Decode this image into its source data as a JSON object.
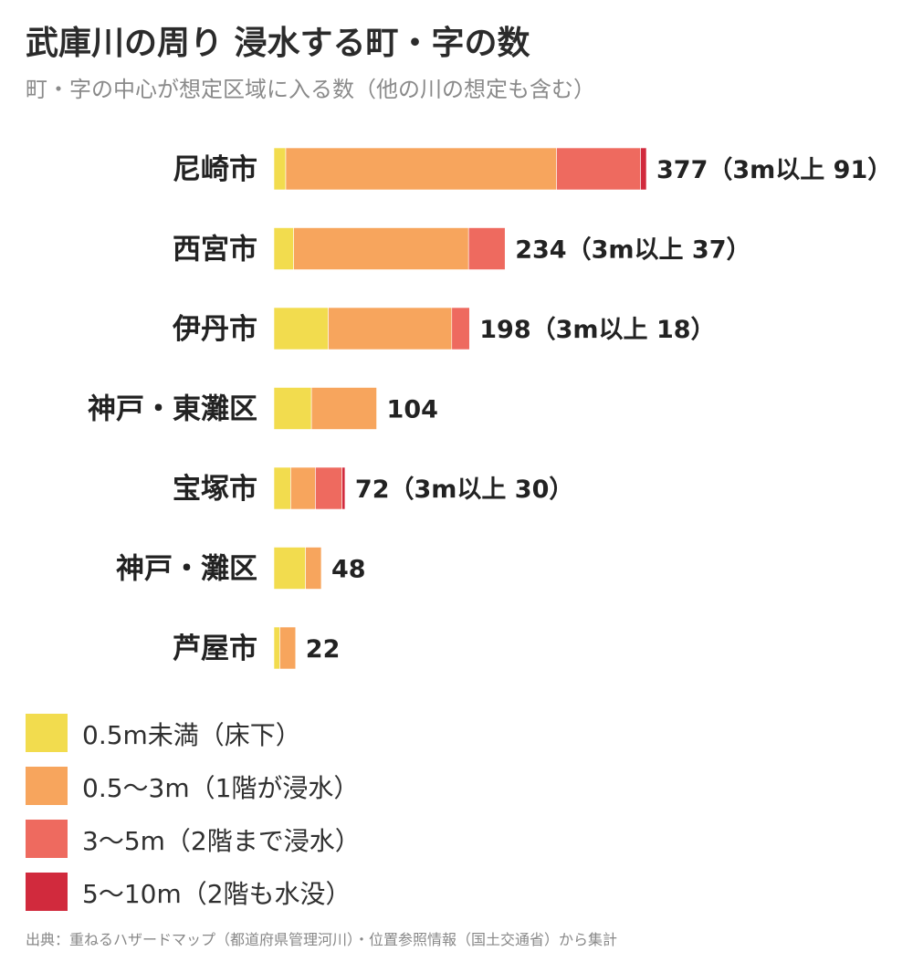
{
  "title": "武庫川の周り 浸水する町・字の数",
  "subtitle": "町・字の中心が想定区域に入る数（他の川の想定も含む）",
  "source": "出典：重ねるハザードマップ（都道府県管理河川）・位置参照情報（国土交通省）から集計",
  "colors": {
    "yellow": "#f2dc4e",
    "orange": "#f7a55d",
    "salmon": "#ee6a5f",
    "red": "#d12a3d"
  },
  "legend": [
    {
      "label": "0.5m未満（床下）",
      "color": "#f2dc4e"
    },
    {
      "label": "0.5〜3m（1階が浸水）",
      "color": "#f7a55d"
    },
    {
      "label": "3〜5m（2階まで浸水）",
      "color": "#ee6a5f"
    },
    {
      "label": "5〜10m（2階も水没）",
      "color": "#d12a3d"
    }
  ],
  "chart_data": {
    "type": "bar",
    "orientation": "horizontal",
    "stacked": true,
    "categories": [
      "尼崎市",
      "西宮市",
      "伊丹市",
      "神戸・東灘区",
      "宝塚市",
      "神戸・灘区",
      "芦屋市"
    ],
    "series": [
      {
        "name": "0.5m未満（床下）",
        "color": "#f2dc4e",
        "values": [
          12,
          20,
          55,
          38,
          17,
          32,
          6
        ]
      },
      {
        "name": "0.5〜3m（1階が浸水）",
        "color": "#f7a55d",
        "values": [
          274,
          177,
          125,
          66,
          25,
          16,
          16
        ]
      },
      {
        "name": "3〜5m（2階まで浸水）",
        "color": "#ee6a5f",
        "values": [
          85,
          37,
          18,
          0,
          27,
          0,
          0
        ]
      },
      {
        "name": "5〜10m（2階も水没）",
        "color": "#d12a3d",
        "values": [
          6,
          0,
          0,
          0,
          3,
          0,
          0
        ]
      }
    ],
    "totals": [
      377,
      234,
      198,
      104,
      72,
      48,
      22
    ],
    "data_labels": [
      "377（3m以上 91）",
      "234（3m以上 37）",
      "198（3m以上 18）",
      "104",
      "72（3m以上 30）",
      "48",
      "22"
    ],
    "xlim": [
      0,
      377
    ],
    "grid": false,
    "legend_position": "bottom-left"
  }
}
